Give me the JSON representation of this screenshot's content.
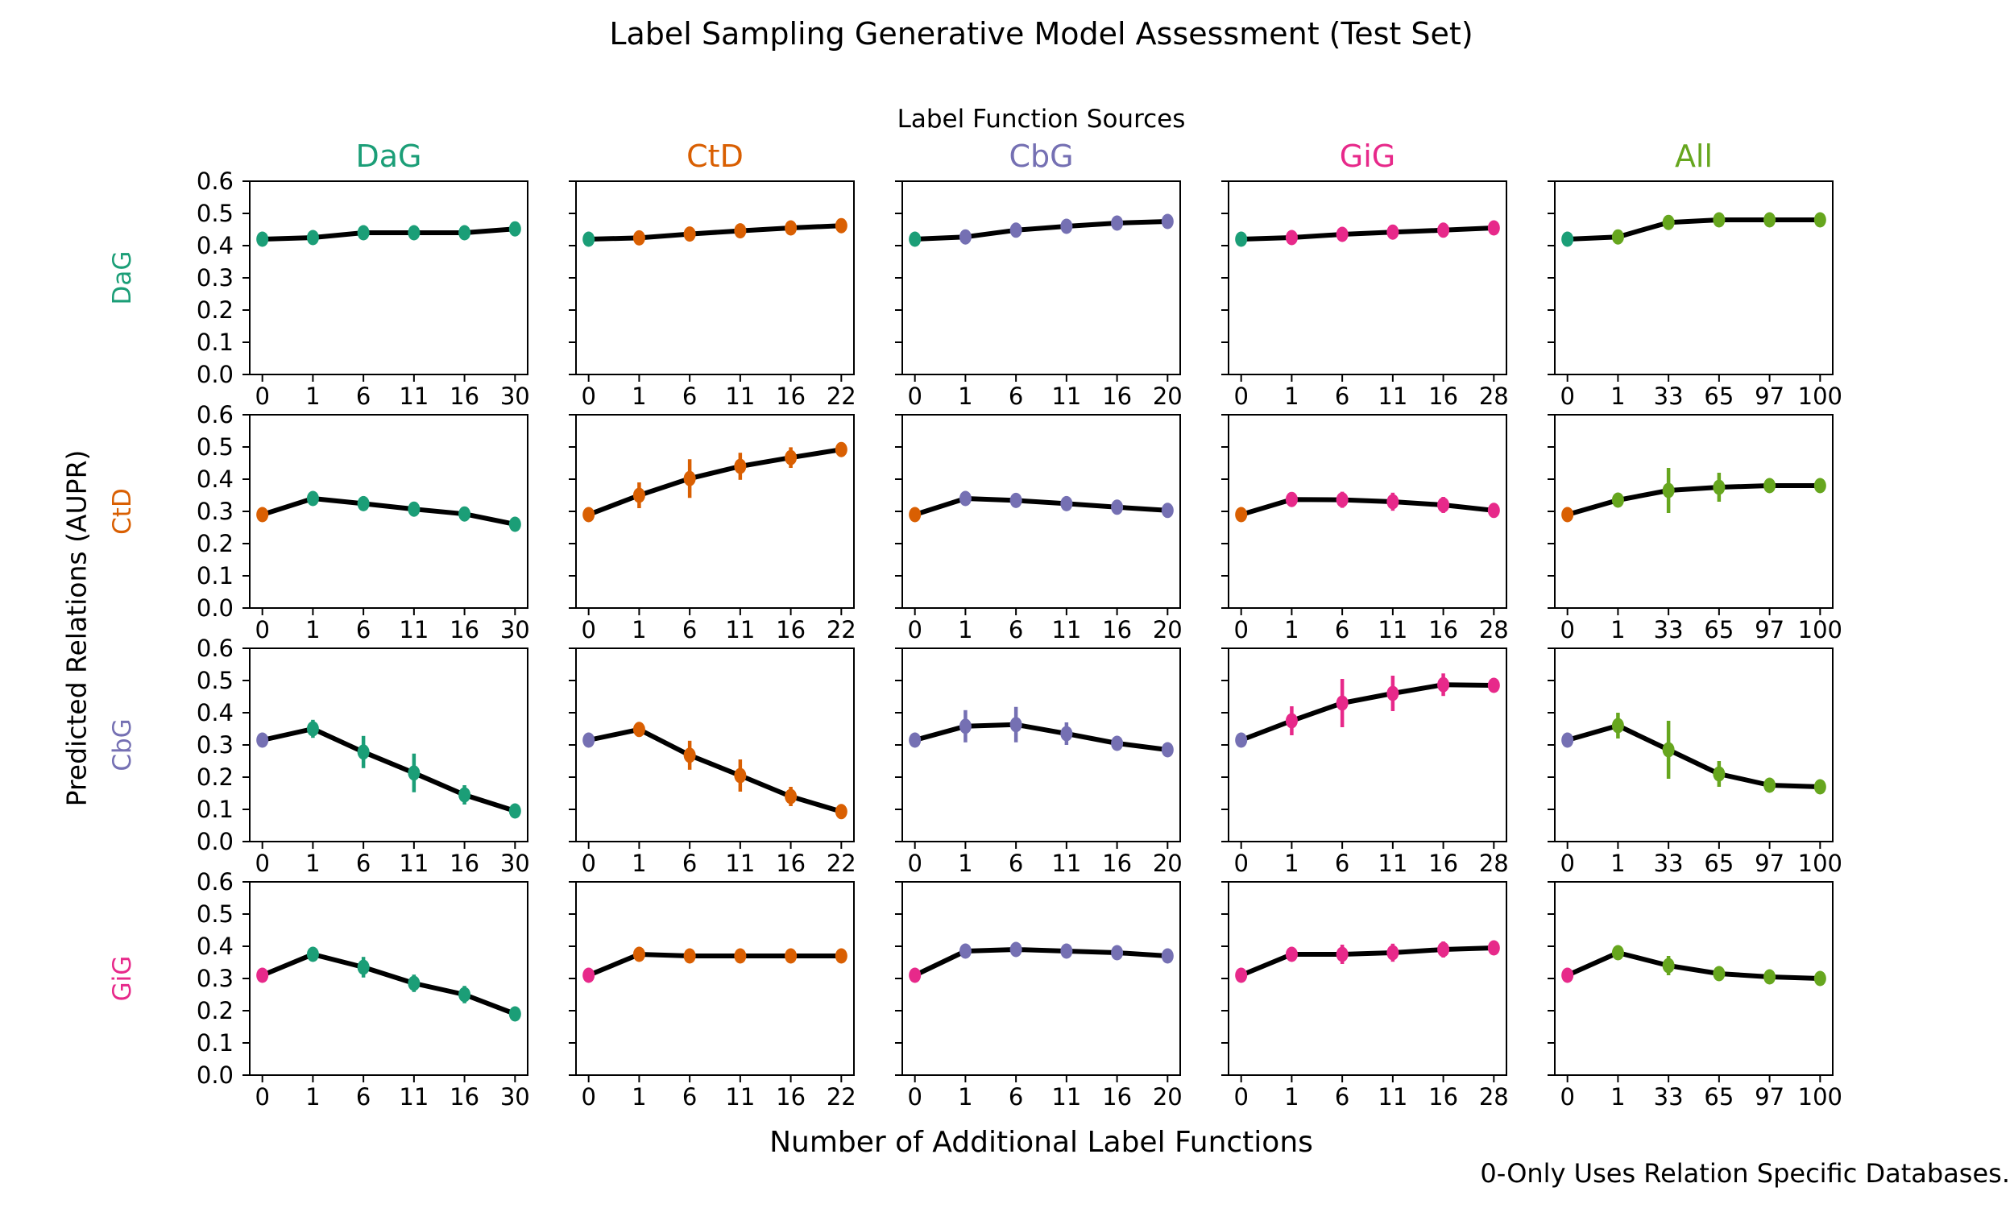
{
  "title": "Label Sampling Generative Model Assessment (Test Set)",
  "axis_titles": {
    "columns": "Label Function Sources",
    "x": "Number of Additional Label Functions",
    "y": "Predicted Relations (AUPR)"
  },
  "footnote": "0-Only Uses Relation Specific Databases.",
  "colors": {
    "DaG": "#1b9e77",
    "CtD": "#d95f02",
    "CbG": "#7570b3",
    "GiG": "#e7298a",
    "All": "#66a61e",
    "line": "#000000"
  },
  "chart_data": {
    "type": "line",
    "title": "Label Sampling Generative Model Assessment (Test Set)",
    "xlabel": "Number of Additional Label Functions",
    "ylabel": "Predicted Relations (AUPR)",
    "columns_title": "Label Function Sources",
    "columns": [
      "DaG",
      "CtD",
      "CbG",
      "GiG",
      "All"
    ],
    "rows": [
      "DaG",
      "CtD",
      "CbG",
      "GiG"
    ],
    "ylim": [
      0.0,
      0.6
    ],
    "yticks": [
      "0.0",
      "0.1",
      "0.2",
      "0.3",
      "0.4",
      "0.5",
      "0.6"
    ],
    "grid_lines": false,
    "baseline_point_colored_by": "row",
    "grid": [
      {
        "row": "DaG",
        "col": "DaG",
        "x": [
          0,
          1,
          6,
          11,
          16,
          30
        ],
        "y": [
          0.42,
          0.425,
          0.44,
          0.44,
          0.44,
          0.452
        ],
        "yerr": [
          0.01,
          0.013,
          0.016,
          0.016,
          0.013,
          0.01
        ]
      },
      {
        "row": "DaG",
        "col": "CtD",
        "x": [
          0,
          1,
          6,
          11,
          16,
          22
        ],
        "y": [
          0.42,
          0.424,
          0.436,
          0.446,
          0.455,
          0.462
        ],
        "yerr": [
          0.01,
          0.012,
          0.012,
          0.012,
          0.012,
          0.012
        ]
      },
      {
        "row": "DaG",
        "col": "CbG",
        "x": [
          0,
          1,
          6,
          11,
          16,
          20
        ],
        "y": [
          0.42,
          0.427,
          0.448,
          0.46,
          0.47,
          0.475
        ],
        "yerr": [
          0.01,
          0.012,
          0.012,
          0.012,
          0.012,
          0.012
        ]
      },
      {
        "row": "DaG",
        "col": "GiG",
        "x": [
          0,
          1,
          6,
          11,
          16,
          28
        ],
        "y": [
          0.42,
          0.425,
          0.435,
          0.442,
          0.448,
          0.455
        ],
        "yerr": [
          0.01,
          0.012,
          0.012,
          0.012,
          0.012,
          0.012
        ]
      },
      {
        "row": "DaG",
        "col": "All",
        "x": [
          0,
          1,
          33,
          65,
          97,
          100
        ],
        "y": [
          0.42,
          0.427,
          0.472,
          0.48,
          0.48,
          0.48
        ],
        "yerr": [
          0.01,
          0.012,
          0.018,
          0.014,
          0.01,
          0.008
        ]
      },
      {
        "row": "CtD",
        "col": "DaG",
        "x": [
          0,
          1,
          6,
          11,
          16,
          30
        ],
        "y": [
          0.29,
          0.34,
          0.324,
          0.307,
          0.292,
          0.26
        ],
        "yerr": [
          0.012,
          0.013,
          0.02,
          0.02,
          0.02,
          0.013
        ]
      },
      {
        "row": "CtD",
        "col": "CtD",
        "x": [
          0,
          1,
          6,
          11,
          16,
          22
        ],
        "y": [
          0.29,
          0.35,
          0.402,
          0.44,
          0.467,
          0.492
        ],
        "yerr": [
          0.012,
          0.04,
          0.06,
          0.042,
          0.032,
          0.014
        ]
      },
      {
        "row": "CtD",
        "col": "CbG",
        "x": [
          0,
          1,
          6,
          11,
          16,
          20
        ],
        "y": [
          0.29,
          0.34,
          0.334,
          0.324,
          0.313,
          0.303
        ],
        "yerr": [
          0.012,
          0.015,
          0.02,
          0.02,
          0.015,
          0.012
        ]
      },
      {
        "row": "CtD",
        "col": "GiG",
        "x": [
          0,
          1,
          6,
          11,
          16,
          28
        ],
        "y": [
          0.29,
          0.337,
          0.336,
          0.33,
          0.32,
          0.303
        ],
        "yerr": [
          0.012,
          0.015,
          0.025,
          0.028,
          0.025,
          0.012
        ]
      },
      {
        "row": "CtD",
        "col": "All",
        "x": [
          0,
          1,
          33,
          65,
          97,
          100
        ],
        "y": [
          0.29,
          0.335,
          0.365,
          0.375,
          0.38,
          0.38
        ],
        "yerr": [
          0.012,
          0.02,
          0.07,
          0.045,
          0.012,
          0.01
        ]
      },
      {
        "row": "CbG",
        "col": "DaG",
        "x": [
          0,
          1,
          6,
          11,
          16,
          30
        ],
        "y": [
          0.315,
          0.35,
          0.278,
          0.213,
          0.145,
          0.095
        ],
        "yerr": [
          0.01,
          0.028,
          0.05,
          0.06,
          0.03,
          0.013
        ]
      },
      {
        "row": "CbG",
        "col": "CtD",
        "x": [
          0,
          1,
          6,
          11,
          16,
          22
        ],
        "y": [
          0.315,
          0.348,
          0.268,
          0.205,
          0.14,
          0.093
        ],
        "yerr": [
          0.01,
          0.022,
          0.045,
          0.05,
          0.03,
          0.013
        ]
      },
      {
        "row": "CbG",
        "col": "CbG",
        "x": [
          0,
          1,
          6,
          11,
          16,
          20
        ],
        "y": [
          0.315,
          0.358,
          0.363,
          0.335,
          0.305,
          0.285
        ],
        "yerr": [
          0.01,
          0.05,
          0.055,
          0.035,
          0.02,
          0.012
        ]
      },
      {
        "row": "CbG",
        "col": "GiG",
        "x": [
          0,
          1,
          6,
          11,
          16,
          28
        ],
        "y": [
          0.315,
          0.375,
          0.43,
          0.46,
          0.487,
          0.485
        ],
        "yerr": [
          0.01,
          0.045,
          0.075,
          0.055,
          0.035,
          0.012
        ]
      },
      {
        "row": "CbG",
        "col": "All",
        "x": [
          0,
          1,
          33,
          65,
          97,
          100
        ],
        "y": [
          0.315,
          0.36,
          0.285,
          0.21,
          0.175,
          0.17
        ],
        "yerr": [
          0.01,
          0.04,
          0.09,
          0.04,
          0.013,
          0.01
        ]
      },
      {
        "row": "GiG",
        "col": "DaG",
        "x": [
          0,
          1,
          6,
          11,
          16,
          30
        ],
        "y": [
          0.31,
          0.375,
          0.335,
          0.285,
          0.25,
          0.19
        ],
        "yerr": [
          0.01,
          0.022,
          0.032,
          0.027,
          0.027,
          0.013
        ]
      },
      {
        "row": "GiG",
        "col": "CtD",
        "x": [
          0,
          1,
          6,
          11,
          16,
          22
        ],
        "y": [
          0.31,
          0.375,
          0.37,
          0.37,
          0.37,
          0.37
        ],
        "yerr": [
          0.01,
          0.013,
          0.015,
          0.015,
          0.015,
          0.013
        ]
      },
      {
        "row": "GiG",
        "col": "CbG",
        "x": [
          0,
          1,
          6,
          11,
          16,
          20
        ],
        "y": [
          0.31,
          0.385,
          0.39,
          0.385,
          0.38,
          0.37
        ],
        "yerr": [
          0.01,
          0.015,
          0.018,
          0.015,
          0.015,
          0.013
        ]
      },
      {
        "row": "GiG",
        "col": "GiG",
        "x": [
          0,
          1,
          6,
          11,
          16,
          28
        ],
        "y": [
          0.31,
          0.375,
          0.375,
          0.38,
          0.39,
          0.395
        ],
        "yerr": [
          0.01,
          0.018,
          0.03,
          0.028,
          0.025,
          0.015
        ]
      },
      {
        "row": "GiG",
        "col": "All",
        "x": [
          0,
          1,
          33,
          65,
          97,
          100
        ],
        "y": [
          0.31,
          0.38,
          0.34,
          0.315,
          0.305,
          0.3
        ],
        "yerr": [
          0.01,
          0.02,
          0.03,
          0.02,
          0.013,
          0.01
        ]
      }
    ]
  }
}
